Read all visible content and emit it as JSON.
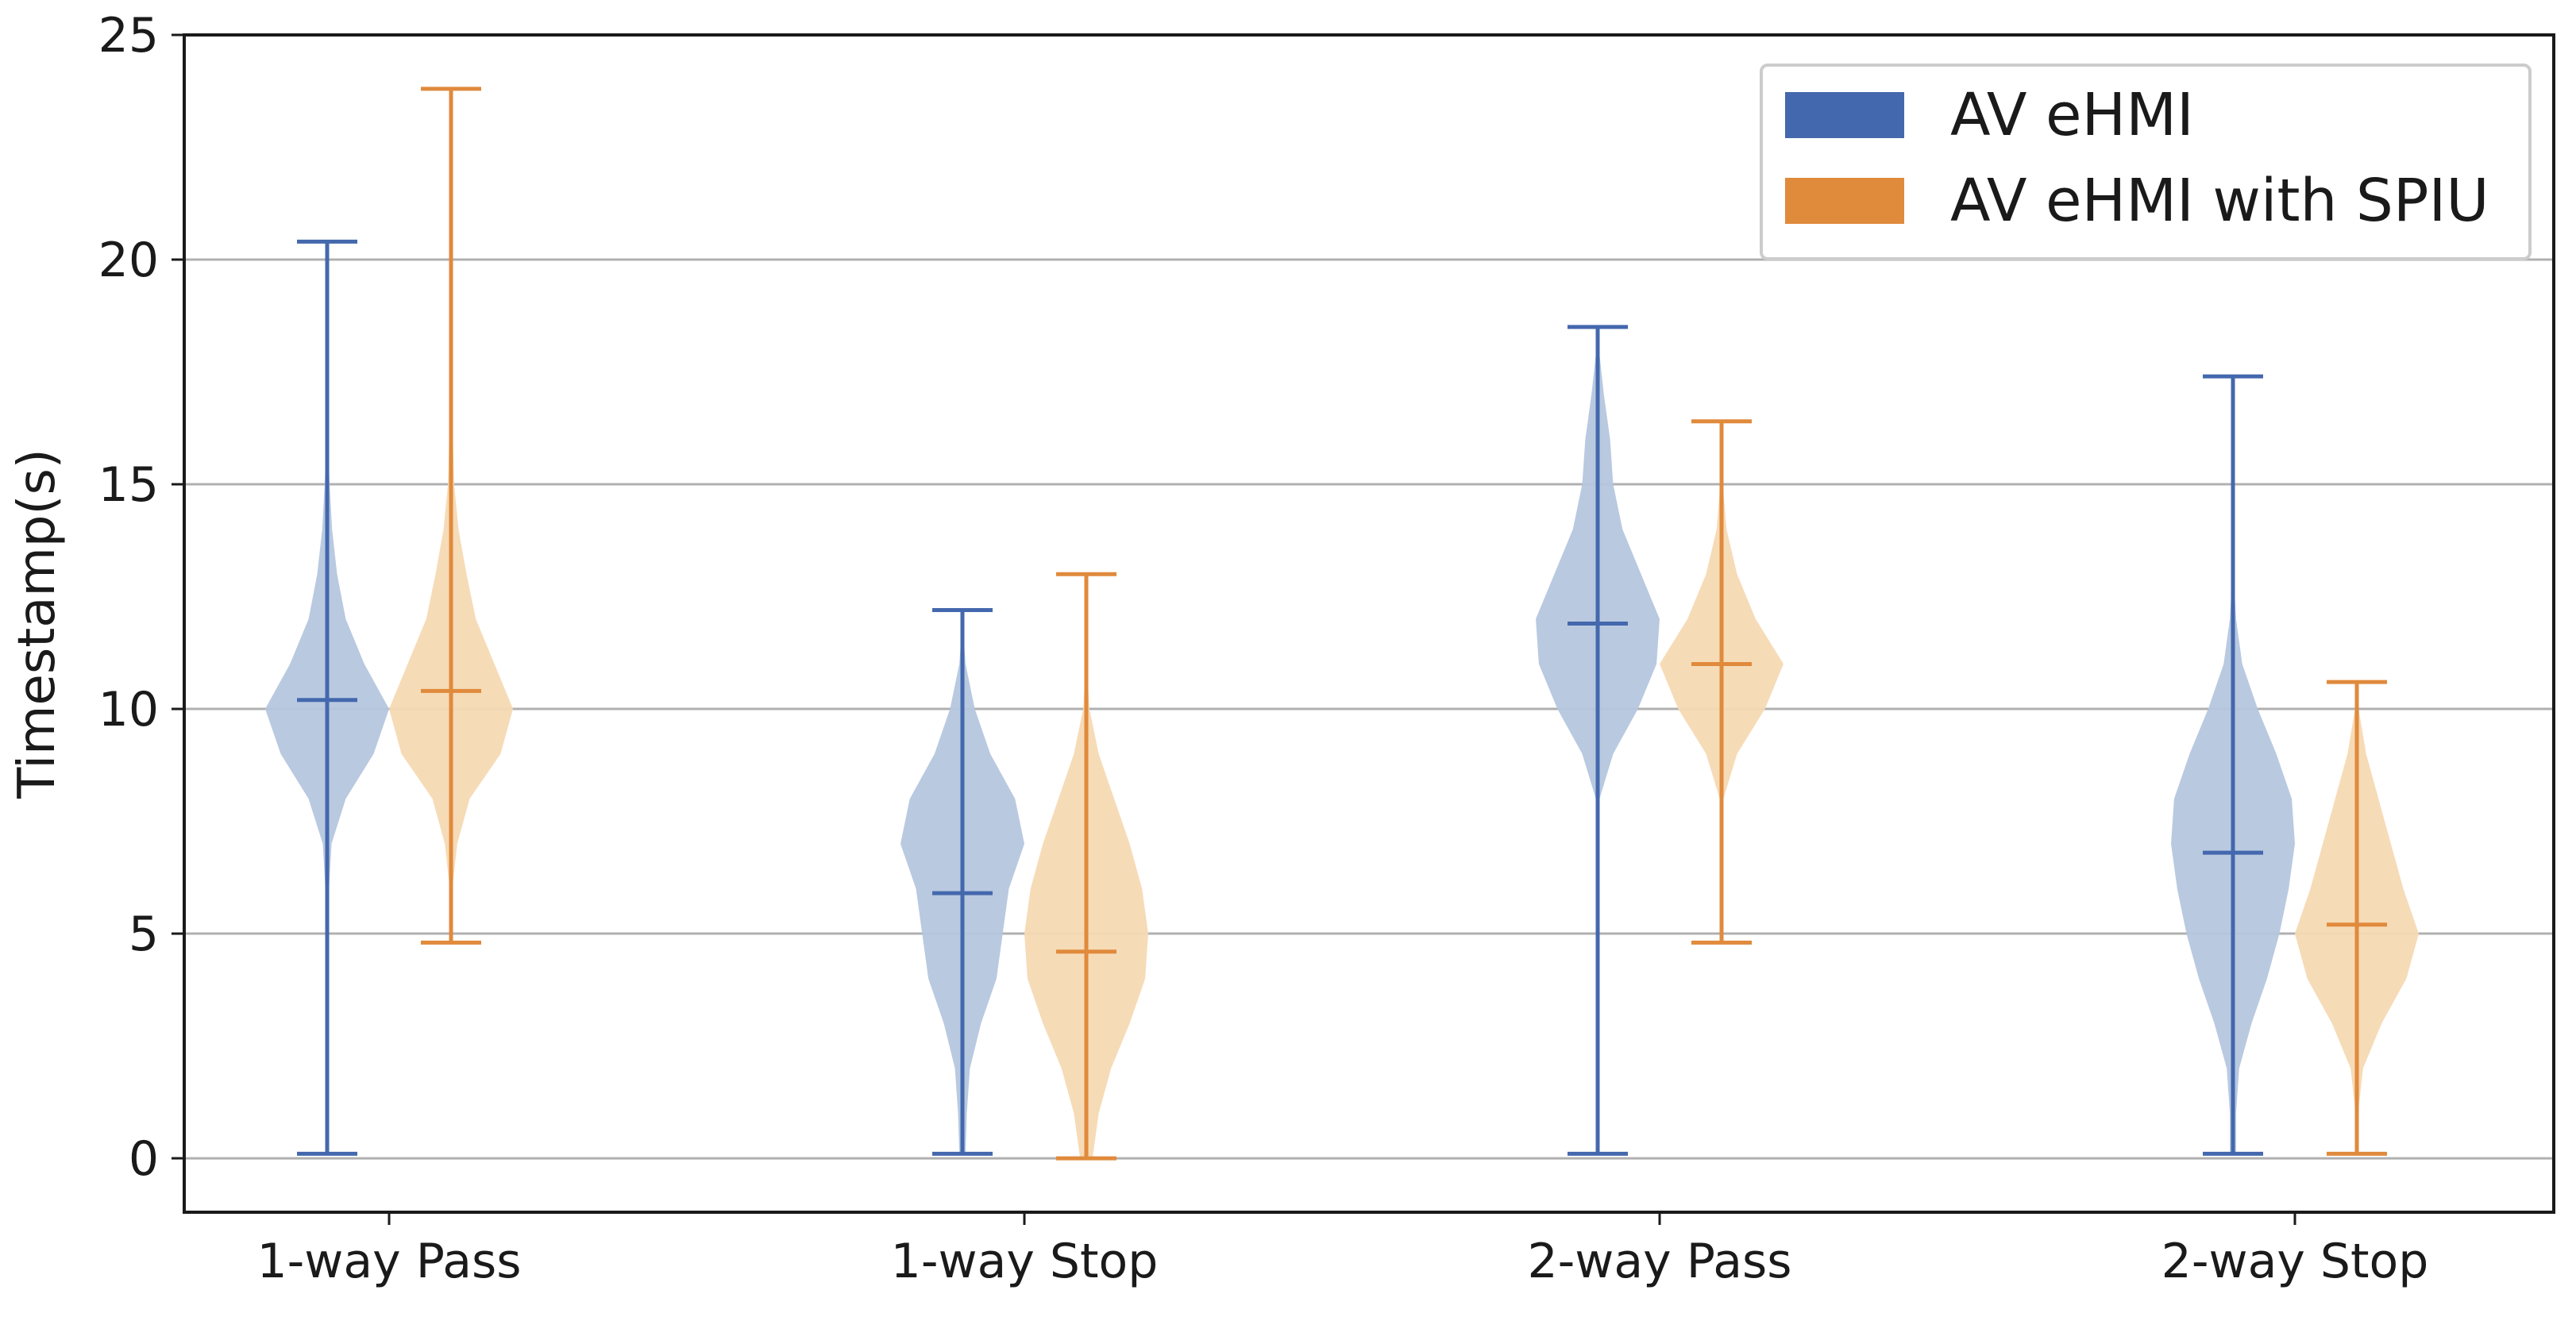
{
  "chart_data": {
    "type": "violin",
    "title": "",
    "xlabel": "",
    "ylabel": "Timestamp(s)",
    "ylim": [
      -1.2,
      25.0
    ],
    "yticks": [
      0,
      5,
      10,
      15,
      20,
      25
    ],
    "grid": "horizontal",
    "legend_position": "top-right",
    "categories": [
      "1-way Pass",
      "1-way Stop",
      "2-way Pass",
      "2-way Stop"
    ],
    "series": [
      {
        "name": "AV eHMI",
        "color": "#4468ad",
        "fill": "#b5c6de",
        "groups": [
          {
            "min": 0.1,
            "median": 10.2,
            "max": 20.4,
            "profile": [
              [
                0.1,
                0.0
              ],
              [
                2,
                0.0
              ],
              [
                4,
                0.01
              ],
              [
                6,
                0.03
              ],
              [
                7,
                0.07
              ],
              [
                8,
                0.3
              ],
              [
                9,
                0.75
              ],
              [
                10,
                1.0
              ],
              [
                11,
                0.6
              ],
              [
                12,
                0.3
              ],
              [
                13,
                0.16
              ],
              [
                14,
                0.08
              ],
              [
                15,
                0.04
              ],
              [
                16,
                0.01
              ],
              [
                18,
                0.0
              ],
              [
                20.4,
                0.0
              ]
            ]
          },
          {
            "min": 0.1,
            "median": 5.9,
            "max": 12.2,
            "profile": [
              [
                0.1,
                0.05
              ],
              [
                1,
                0.07
              ],
              [
                2,
                0.12
              ],
              [
                3,
                0.3
              ],
              [
                4,
                0.55
              ],
              [
                5,
                0.65
              ],
              [
                6,
                0.75
              ],
              [
                7,
                1.0
              ],
              [
                8,
                0.85
              ],
              [
                9,
                0.45
              ],
              [
                10,
                0.2
              ],
              [
                11,
                0.05
              ],
              [
                12,
                0.0
              ],
              [
                12.2,
                0.0
              ]
            ]
          },
          {
            "min": 0.1,
            "median": 11.9,
            "max": 18.5,
            "profile": [
              [
                0.1,
                0.0
              ],
              [
                4,
                0.0
              ],
              [
                6,
                0.01
              ],
              [
                8,
                0.03
              ],
              [
                9,
                0.25
              ],
              [
                10,
                0.65
              ],
              [
                11,
                0.95
              ],
              [
                12,
                1.0
              ],
              [
                13,
                0.7
              ],
              [
                14,
                0.4
              ],
              [
                15,
                0.25
              ],
              [
                16,
                0.2
              ],
              [
                17,
                0.1
              ],
              [
                18,
                0.02
              ],
              [
                18.5,
                0.0
              ]
            ]
          },
          {
            "min": 0.1,
            "median": 6.8,
            "max": 17.4,
            "profile": [
              [
                0.1,
                0.05
              ],
              [
                1,
                0.05
              ],
              [
                2,
                0.1
              ],
              [
                3,
                0.3
              ],
              [
                4,
                0.55
              ],
              [
                5,
                0.75
              ],
              [
                6,
                0.9
              ],
              [
                7,
                1.0
              ],
              [
                8,
                0.95
              ],
              [
                9,
                0.7
              ],
              [
                10,
                0.4
              ],
              [
                11,
                0.15
              ],
              [
                12,
                0.05
              ],
              [
                13,
                0.01
              ],
              [
                17.4,
                0.0
              ]
            ]
          }
        ]
      },
      {
        "name": "AV eHMI with SPIU",
        "color": "#e08a3c",
        "fill": "#f6d9b3",
        "groups": [
          {
            "min": 4.8,
            "median": 10.4,
            "max": 23.8,
            "profile": [
              [
                4.8,
                0.0
              ],
              [
                6,
                0.02
              ],
              [
                7,
                0.1
              ],
              [
                8,
                0.3
              ],
              [
                9,
                0.8
              ],
              [
                10,
                1.0
              ],
              [
                11,
                0.7
              ],
              [
                12,
                0.4
              ],
              [
                13,
                0.25
              ],
              [
                14,
                0.12
              ],
              [
                15,
                0.05
              ],
              [
                17,
                0.01
              ],
              [
                20,
                0.0
              ],
              [
                23.8,
                0.0
              ]
            ]
          },
          {
            "min": 0.0,
            "median": 4.6,
            "max": 13.0,
            "profile": [
              [
                0.0,
                0.1
              ],
              [
                1,
                0.2
              ],
              [
                2,
                0.4
              ],
              [
                3,
                0.7
              ],
              [
                4,
                0.95
              ],
              [
                5,
                1.0
              ],
              [
                6,
                0.9
              ],
              [
                7,
                0.7
              ],
              [
                8,
                0.45
              ],
              [
                9,
                0.2
              ],
              [
                10,
                0.05
              ],
              [
                11,
                0.01
              ],
              [
                13,
                0.0
              ]
            ]
          },
          {
            "min": 4.8,
            "median": 11.0,
            "max": 16.4,
            "profile": [
              [
                4.8,
                0.0
              ],
              [
                7,
                0.0
              ],
              [
                8,
                0.03
              ],
              [
                9,
                0.25
              ],
              [
                10,
                0.7
              ],
              [
                11,
                1.0
              ],
              [
                12,
                0.55
              ],
              [
                13,
                0.25
              ],
              [
                14,
                0.08
              ],
              [
                15,
                0.02
              ],
              [
                16.4,
                0.0
              ]
            ]
          },
          {
            "min": 0.1,
            "median": 5.2,
            "max": 10.6,
            "profile": [
              [
                0.1,
                0.0
              ],
              [
                1,
                0.02
              ],
              [
                2,
                0.1
              ],
              [
                3,
                0.4
              ],
              [
                4,
                0.8
              ],
              [
                5,
                1.0
              ],
              [
                6,
                0.75
              ],
              [
                7,
                0.55
              ],
              [
                8,
                0.35
              ],
              [
                9,
                0.15
              ],
              [
                10,
                0.03
              ],
              [
                10.6,
                0.0
              ]
            ]
          }
        ]
      }
    ]
  }
}
